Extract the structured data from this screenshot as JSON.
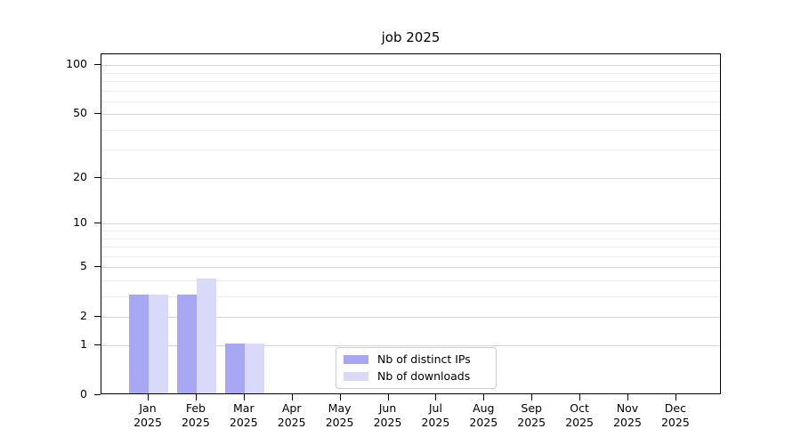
{
  "title": "job 2025",
  "chart_data": {
    "type": "bar",
    "title": "job 2025",
    "year": "2025",
    "categories": [
      "Jan",
      "Feb",
      "Mar",
      "Apr",
      "May",
      "Jun",
      "Jul",
      "Aug",
      "Sep",
      "Oct",
      "Nov",
      "Dec"
    ],
    "series": [
      {
        "name": "Nb of distinct IPs",
        "color": "#a7a7f3",
        "values": [
          3,
          3,
          1,
          0,
          0,
          0,
          0,
          0,
          0,
          0,
          0,
          0
        ]
      },
      {
        "name": "Nb of downloads",
        "color": "#d9d9fa",
        "values": [
          3,
          4,
          1,
          0,
          0,
          0,
          0,
          0,
          0,
          0,
          0,
          0
        ]
      }
    ],
    "xlabel": "",
    "ylabel": "",
    "yscale": "log1p",
    "ylim": [
      0,
      117
    ],
    "y_major_ticks": [
      0,
      1,
      2,
      5,
      10,
      20,
      50,
      100
    ],
    "y_minor_gridlines": [
      3,
      4,
      6,
      7,
      8,
      9,
      30,
      40,
      60,
      70,
      80,
      90
    ],
    "grid": true,
    "legend_position": "lower-center",
    "colors": {
      "grid_major": "#d4d4d4",
      "grid_minor": "#ededed",
      "spine": "#000000",
      "background": "#ffffff"
    }
  }
}
